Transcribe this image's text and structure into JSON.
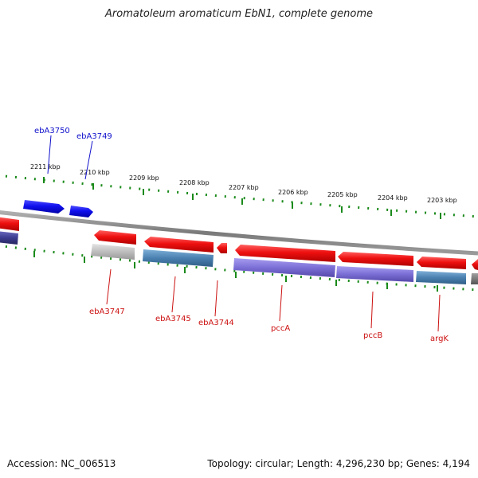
{
  "title": "Aromatoleum aromaticum EbN1, complete genome",
  "footer": {
    "accession": "Accession: NC_006513",
    "summary": "Topology: circular; Length: 4,296,230 bp; Genes: 4,194"
  },
  "colors": {
    "backbone": "#8a8a8a",
    "ticks": "#1a8a1a",
    "forward_cds": "#1010ee",
    "reverse_cds": "#ee1010",
    "cog_purple": "#7b6fd6",
    "cog_steel": "#4a80b0",
    "cog_grey": "#b8b8b8",
    "cog_navy": "#3c3c90",
    "cog_dark": "#777777",
    "label_forward": "#1010cc",
    "label_reverse": "#cc1010"
  },
  "kbp_labels": [
    "2211 kbp",
    "2210 kbp",
    "2209 kbp",
    "2208 kbp",
    "2207 kbp",
    "2206 kbp",
    "2205 kbp",
    "2204 kbp",
    "2203 kbp"
  ],
  "forward_genes": [
    {
      "name": "ebA3750"
    },
    {
      "name": "ebA3749"
    }
  ],
  "reverse_genes": [
    {
      "name": "ebA3747"
    },
    {
      "name": "ebA3745"
    },
    {
      "name": "ebA3744"
    },
    {
      "name": "pccA"
    },
    {
      "name": "pccB"
    },
    {
      "name": "argK"
    }
  ]
}
